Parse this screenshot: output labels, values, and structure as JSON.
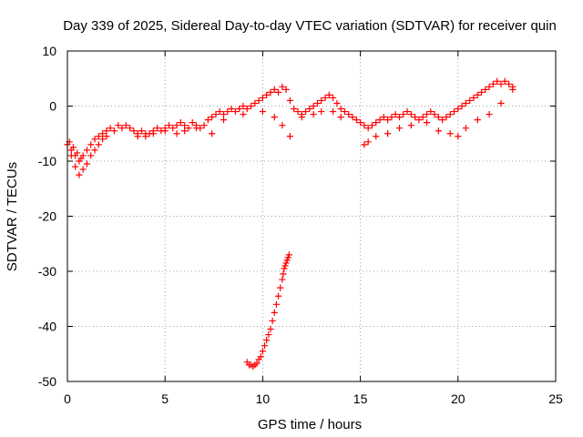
{
  "chart_data": {
    "type": "scatter",
    "title": "Day 339 of 2025, Sidereal Day-to-day VTEC variation (SDTVAR) for receiver quin",
    "xlabel": "GPS time / hours",
    "ylabel": "SDTVAR / TECUs",
    "xlim": [
      0,
      25
    ],
    "ylim": [
      -50,
      10
    ],
    "xticks": [
      0,
      5,
      10,
      15,
      20,
      25
    ],
    "yticks": [
      -50,
      -40,
      -30,
      -20,
      -10,
      0,
      10
    ],
    "xtick_labels": [
      "0",
      "5",
      "10",
      "15",
      "20",
      "25"
    ],
    "ytick_labels": [
      "-50",
      "-40",
      "-30",
      "-20",
      "-10",
      "0",
      "10"
    ],
    "grid": true,
    "marker": "plus",
    "series": [
      {
        "name": "main_band",
        "color": "#ff0000",
        "x": [
          0.0,
          0.1,
          0.2,
          0.3,
          0.4,
          0.5,
          0.6,
          0.7,
          0.8,
          1.0,
          1.2,
          1.4,
          1.6,
          1.8,
          2.0,
          2.2,
          2.4,
          2.6,
          2.8,
          3.0,
          3.2,
          3.4,
          3.6,
          3.8,
          4.0,
          4.2,
          4.4,
          4.6,
          4.8,
          5.0,
          5.2,
          5.4,
          5.6,
          5.8,
          6.0,
          6.2,
          6.4,
          6.6,
          6.8,
          7.0,
          7.2,
          7.4,
          7.6,
          7.8,
          8.0,
          8.2,
          8.4,
          8.6,
          8.8,
          9.0,
          9.2,
          9.4,
          9.6,
          9.8,
          10.0,
          10.2,
          10.4,
          10.6,
          10.8,
          11.0,
          11.2,
          11.4,
          11.6,
          11.8,
          12.0,
          12.2,
          12.4,
          12.6,
          12.8,
          13.0,
          13.2,
          13.4,
          13.6,
          13.8,
          14.0,
          14.2,
          14.4,
          14.6,
          14.8,
          15.0,
          15.2,
          15.4,
          15.6,
          15.8,
          16.0,
          16.2,
          16.4,
          16.6,
          16.8,
          17.0,
          17.2,
          17.4,
          17.6,
          17.8,
          18.0,
          18.2,
          18.4,
          18.6,
          18.8,
          19.0,
          19.2,
          19.4,
          19.6,
          19.8,
          20.0,
          20.2,
          20.4,
          20.6,
          20.8,
          21.0,
          21.2,
          21.4,
          21.6,
          21.8,
          22.0,
          22.2,
          22.4,
          22.6,
          22.8
        ],
        "y": [
          -7,
          -6.5,
          -8,
          -7.5,
          -9,
          -8.5,
          -10,
          -9.5,
          -9,
          -8,
          -7,
          -6,
          -5.5,
          -5,
          -4.5,
          -4,
          -4.5,
          -3.5,
          -4,
          -3.5,
          -4,
          -4.5,
          -5,
          -4.5,
          -5,
          -5,
          -4.5,
          -4,
          -4.5,
          -4,
          -3.5,
          -4,
          -3.5,
          -3,
          -3.5,
          -4,
          -3,
          -3.5,
          -4,
          -3.5,
          -2.5,
          -2,
          -1.5,
          -1,
          -1.5,
          -1,
          -0.5,
          -1,
          -0.5,
          0,
          -0.5,
          0,
          0.5,
          1,
          1.5,
          2,
          2.5,
          3,
          2.5,
          3.5,
          3,
          1,
          -0.5,
          -1,
          -1.5,
          -1,
          -0.5,
          0,
          0.5,
          1,
          1.5,
          2,
          1.5,
          0.5,
          -0.5,
          -1,
          -1.5,
          -2,
          -2.5,
          -3,
          -3.5,
          -4,
          -3.5,
          -3,
          -2.5,
          -2,
          -2.5,
          -2,
          -1.5,
          -2,
          -1.5,
          -1,
          -1.5,
          -2,
          -2.5,
          -2,
          -1.5,
          -1,
          -1.5,
          -2,
          -2.5,
          -2,
          -1.5,
          -1,
          -0.5,
          0,
          0.5,
          1,
          1.5,
          2,
          2.5,
          3,
          3.5,
          4,
          4.5,
          4,
          4.5,
          4,
          3.5
        ]
      },
      {
        "name": "lower_band",
        "color": "#ff0000",
        "x": [
          0.2,
          0.4,
          0.6,
          0.8,
          1.0,
          1.2,
          1.4,
          1.6,
          1.8,
          2.0,
          3.6,
          4.0,
          4.4,
          5.0,
          5.6,
          6.0,
          6.6,
          7.4,
          8.0,
          9.0,
          10.0,
          10.6,
          11.0,
          11.4,
          12.0,
          12.6,
          13.0,
          13.6,
          14.0,
          15.2,
          15.4,
          15.8,
          16.4,
          17.0,
          17.6,
          18.4,
          19.0,
          19.6,
          20.0,
          20.4,
          21.0,
          21.6,
          22.2,
          22.8
        ],
        "y": [
          -9,
          -11,
          -12.5,
          -11.5,
          -10.5,
          -9,
          -8,
          -7,
          -6,
          -5.5,
          -5.5,
          -5.5,
          -5,
          -4.5,
          -5,
          -4.5,
          -4,
          -5,
          -2.5,
          -1.5,
          -1,
          -2,
          -3.5,
          -5.5,
          -2,
          -1.5,
          -1,
          -1,
          -2,
          -7,
          -6.5,
          -5.5,
          -5,
          -4,
          -3.5,
          -3,
          -4.5,
          -5,
          -5.5,
          -4,
          -2.5,
          -1.5,
          0.5,
          3
        ]
      },
      {
        "name": "low_arc",
        "color": "#ff0000",
        "x": [
          9.2,
          9.3,
          9.4,
          9.5,
          9.6,
          9.7,
          9.8,
          9.9,
          10.0,
          10.1,
          10.2,
          10.3,
          10.4,
          10.5,
          10.6,
          10.7,
          10.8,
          10.9,
          11.0,
          11.05,
          11.1,
          11.15,
          11.2,
          11.25,
          11.3,
          11.35
        ],
        "y": [
          -46.5,
          -47,
          -47,
          -47.3,
          -47,
          -46.7,
          -46,
          -45.5,
          -44.5,
          -43.5,
          -42.5,
          -41.5,
          -40.5,
          -39,
          -37.5,
          -36,
          -34.5,
          -33,
          -31.5,
          -30.5,
          -29.5,
          -29,
          -28.5,
          -28,
          -27.5,
          -27
        ]
      }
    ]
  }
}
